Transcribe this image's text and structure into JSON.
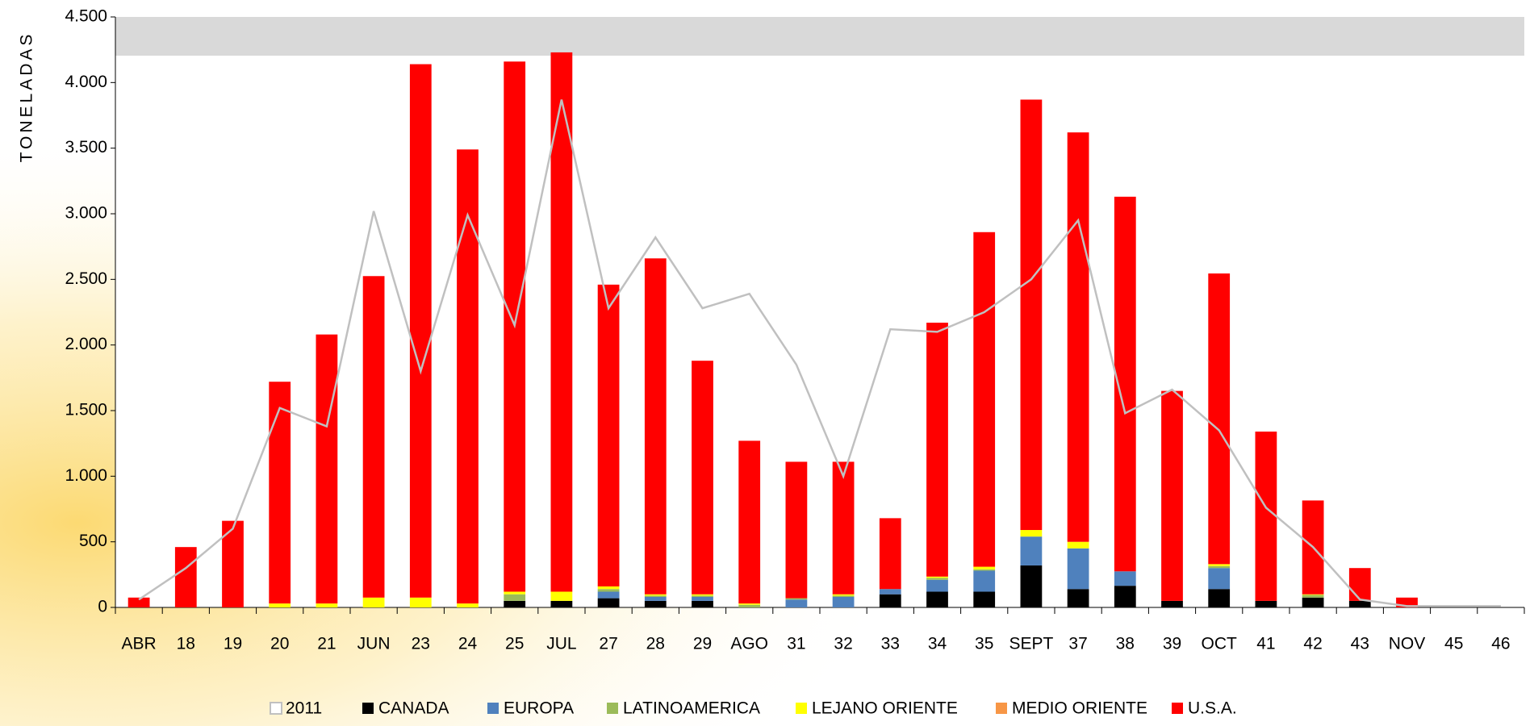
{
  "chart_data": {
    "type": "bar",
    "stacked": true,
    "y_label": "TONELADAS",
    "categories": [
      "ABR",
      "18",
      "19",
      "20",
      "21",
      "JUN",
      "23",
      "24",
      "25",
      "JUL",
      "27",
      "28",
      "29",
      "AGO",
      "31",
      "32",
      "33",
      "34",
      "35",
      "SEPT",
      "37",
      "38",
      "39",
      "OCT",
      "41",
      "42",
      "43",
      "NOV",
      "45",
      "46"
    ],
    "series": [
      {
        "name": "2011",
        "type": "line",
        "color": "#c0c0c0",
        "values": [
          60,
          300,
          600,
          1520,
          1380,
          3020,
          1800,
          2990,
          2150,
          3870,
          2280,
          2820,
          2280,
          2390,
          1850,
          1000,
          2120,
          2100,
          2250,
          2500,
          2950,
          1480,
          1660,
          1350,
          760,
          460,
          60,
          10,
          10,
          10
        ]
      },
      {
        "name": "CANADA",
        "color": "#000000",
        "values": [
          0,
          0,
          0,
          0,
          0,
          0,
          0,
          0,
          50,
          50,
          70,
          50,
          50,
          0,
          0,
          0,
          100,
          120,
          120,
          320,
          140,
          165,
          50,
          140,
          50,
          75,
          50,
          0,
          0,
          0
        ]
      },
      {
        "name": "EUROPA",
        "color": "#4f81bd",
        "values": [
          0,
          0,
          0,
          0,
          0,
          0,
          0,
          0,
          0,
          0,
          50,
          30,
          30,
          0,
          60,
          80,
          40,
          90,
          160,
          220,
          310,
          110,
          0,
          160,
          0,
          0,
          0,
          0,
          0,
          0
        ]
      },
      {
        "name": "LATINOAMERICA",
        "color": "#9bbb59",
        "values": [
          0,
          0,
          0,
          0,
          0,
          0,
          0,
          0,
          50,
          0,
          20,
          10,
          10,
          20,
          10,
          10,
          0,
          15,
          10,
          0,
          0,
          0,
          0,
          15,
          0,
          20,
          0,
          0,
          0,
          0
        ]
      },
      {
        "name": "LEJANO ORIENTE",
        "color": "#ffff00",
        "values": [
          0,
          0,
          0,
          30,
          30,
          75,
          75,
          30,
          20,
          70,
          20,
          10,
          10,
          10,
          0,
          10,
          0,
          10,
          20,
          50,
          50,
          0,
          0,
          15,
          0,
          5,
          0,
          0,
          0,
          0
        ]
      },
      {
        "name": "MEDIO ORIENTE",
        "color": "#f79646",
        "values": [
          0,
          0,
          0,
          0,
          0,
          0,
          0,
          0,
          0,
          0,
          0,
          0,
          0,
          0,
          0,
          0,
          0,
          0,
          0,
          0,
          0,
          0,
          0,
          0,
          0,
          0,
          0,
          0,
          0,
          0
        ]
      },
      {
        "name": "U.S.A.",
        "color": "#ff0000",
        "values": [
          75,
          460,
          660,
          1690,
          2050,
          2450,
          4065,
          3460,
          4040,
          4110,
          2300,
          2560,
          1780,
          1240,
          1040,
          1010,
          540,
          1935,
          2550,
          3280,
          3120,
          2855,
          1600,
          2215,
          1290,
          715,
          250,
          75,
          0,
          0
        ]
      }
    ],
    "ylim": [
      0,
      4500
    ],
    "yticks": [
      0,
      500,
      {
        "value": 1000,
        "label": "1.000"
      },
      {
        "value": 1500,
        "label": "1.500"
      },
      {
        "value": 2000,
        "label": "2.000"
      },
      {
        "value": 2500,
        "label": "2.500"
      },
      {
        "value": 3000,
        "label": "3.000"
      },
      {
        "value": 3500,
        "label": "3.500"
      },
      {
        "value": 4000,
        "label": "4.000"
      },
      {
        "value": 4500,
        "label": "4.500"
      }
    ],
    "grid": false,
    "legend": "bottom"
  }
}
